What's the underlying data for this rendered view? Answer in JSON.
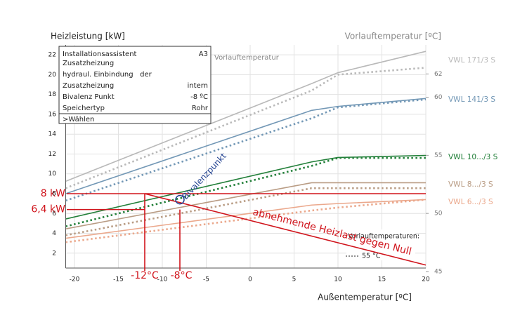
{
  "chart_data": {
    "type": "line",
    "title": "Heizleistung [kW]",
    "y2_title": "Vorlauftemperatur [ºC]",
    "x_title": "Außentemperatur [ºC]",
    "inner_label": "Vorlauftemperatur",
    "x": [
      -21,
      7,
      10,
      20
    ],
    "xlim": [
      -21,
      20
    ],
    "xticks": [
      -20,
      -15,
      -10,
      -5,
      0,
      5,
      10,
      15,
      20
    ],
    "ylim": [
      0.5,
      23
    ],
    "yticks": [
      2,
      4,
      6,
      8,
      10,
      12,
      14,
      16,
      18,
      20,
      22
    ],
    "y2lim": [
      45.3,
      64.5
    ],
    "y2ticks": [
      45,
      50,
      55,
      60,
      62
    ],
    "grid": true,
    "series": [
      {
        "name": "VWL 171/3 S",
        "color": "#b9b9b9",
        "values": [
          9.25,
          19.1,
          20.2,
          22.35
        ],
        "dotted_values": [
          8.55,
          18.4,
          20.0,
          20.7
        ]
      },
      {
        "name": "VWL 141/3 S",
        "color": "#7398b6",
        "values": [
          8.0,
          16.4,
          16.8,
          17.6
        ],
        "dotted_values": [
          7.3,
          15.6,
          16.7,
          17.5
        ]
      },
      {
        "name": "VWL 10.../3 S",
        "color": "#23803a",
        "values": [
          5.45,
          11.2,
          11.65,
          11.85
        ],
        "dotted_values": [
          4.7,
          10.8,
          11.6,
          11.6
        ]
      },
      {
        "name": "VWL 8.../3 S",
        "color": "#b99c84",
        "values": [
          4.45,
          9.1,
          9.1,
          9.1
        ],
        "dotted_values": [
          3.8,
          8.55,
          8.55,
          8.55
        ]
      },
      {
        "name": "VWL 6.../3 S",
        "color": "#eba88c",
        "values": [
          3.5,
          6.85,
          7.0,
          7.4
        ],
        "dotted_values": [
          3.1,
          6.3,
          6.6,
          7.4
        ]
      }
    ],
    "markers": [
      {
        "label": "8 kW",
        "value": 8
      },
      {
        "label": "6,4 kW",
        "value": 6.4
      }
    ],
    "x_markers": [
      {
        "label": "-12°C",
        "value": -12
      },
      {
        "label": "-8°C",
        "value": -8
      }
    ],
    "bivalence_label": "Bivalenzpunkt",
    "load_line": {
      "label": "abnehmende Heizlast gegen Null",
      "x": [
        -12,
        20
      ],
      "values": [
        8,
        0.8
      ]
    },
    "temp_legend": {
      "title": "Vorlauftemperaturen:",
      "dotted_label": "55 °C"
    },
    "info_panel": {
      "rows": [
        [
          "Installationsassistent",
          "A3"
        ],
        [
          "Zusatzheizung"
        ],
        [
          "hydraul. Einbindung   der"
        ],
        [
          "Zusatzheizung",
          "intern"
        ],
        [
          "Bivalenz Punkt",
          "-8 ºC"
        ],
        [
          "Speichertyp",
          "Rohr"
        ],
        [
          ">Wählen"
        ]
      ]
    }
  }
}
